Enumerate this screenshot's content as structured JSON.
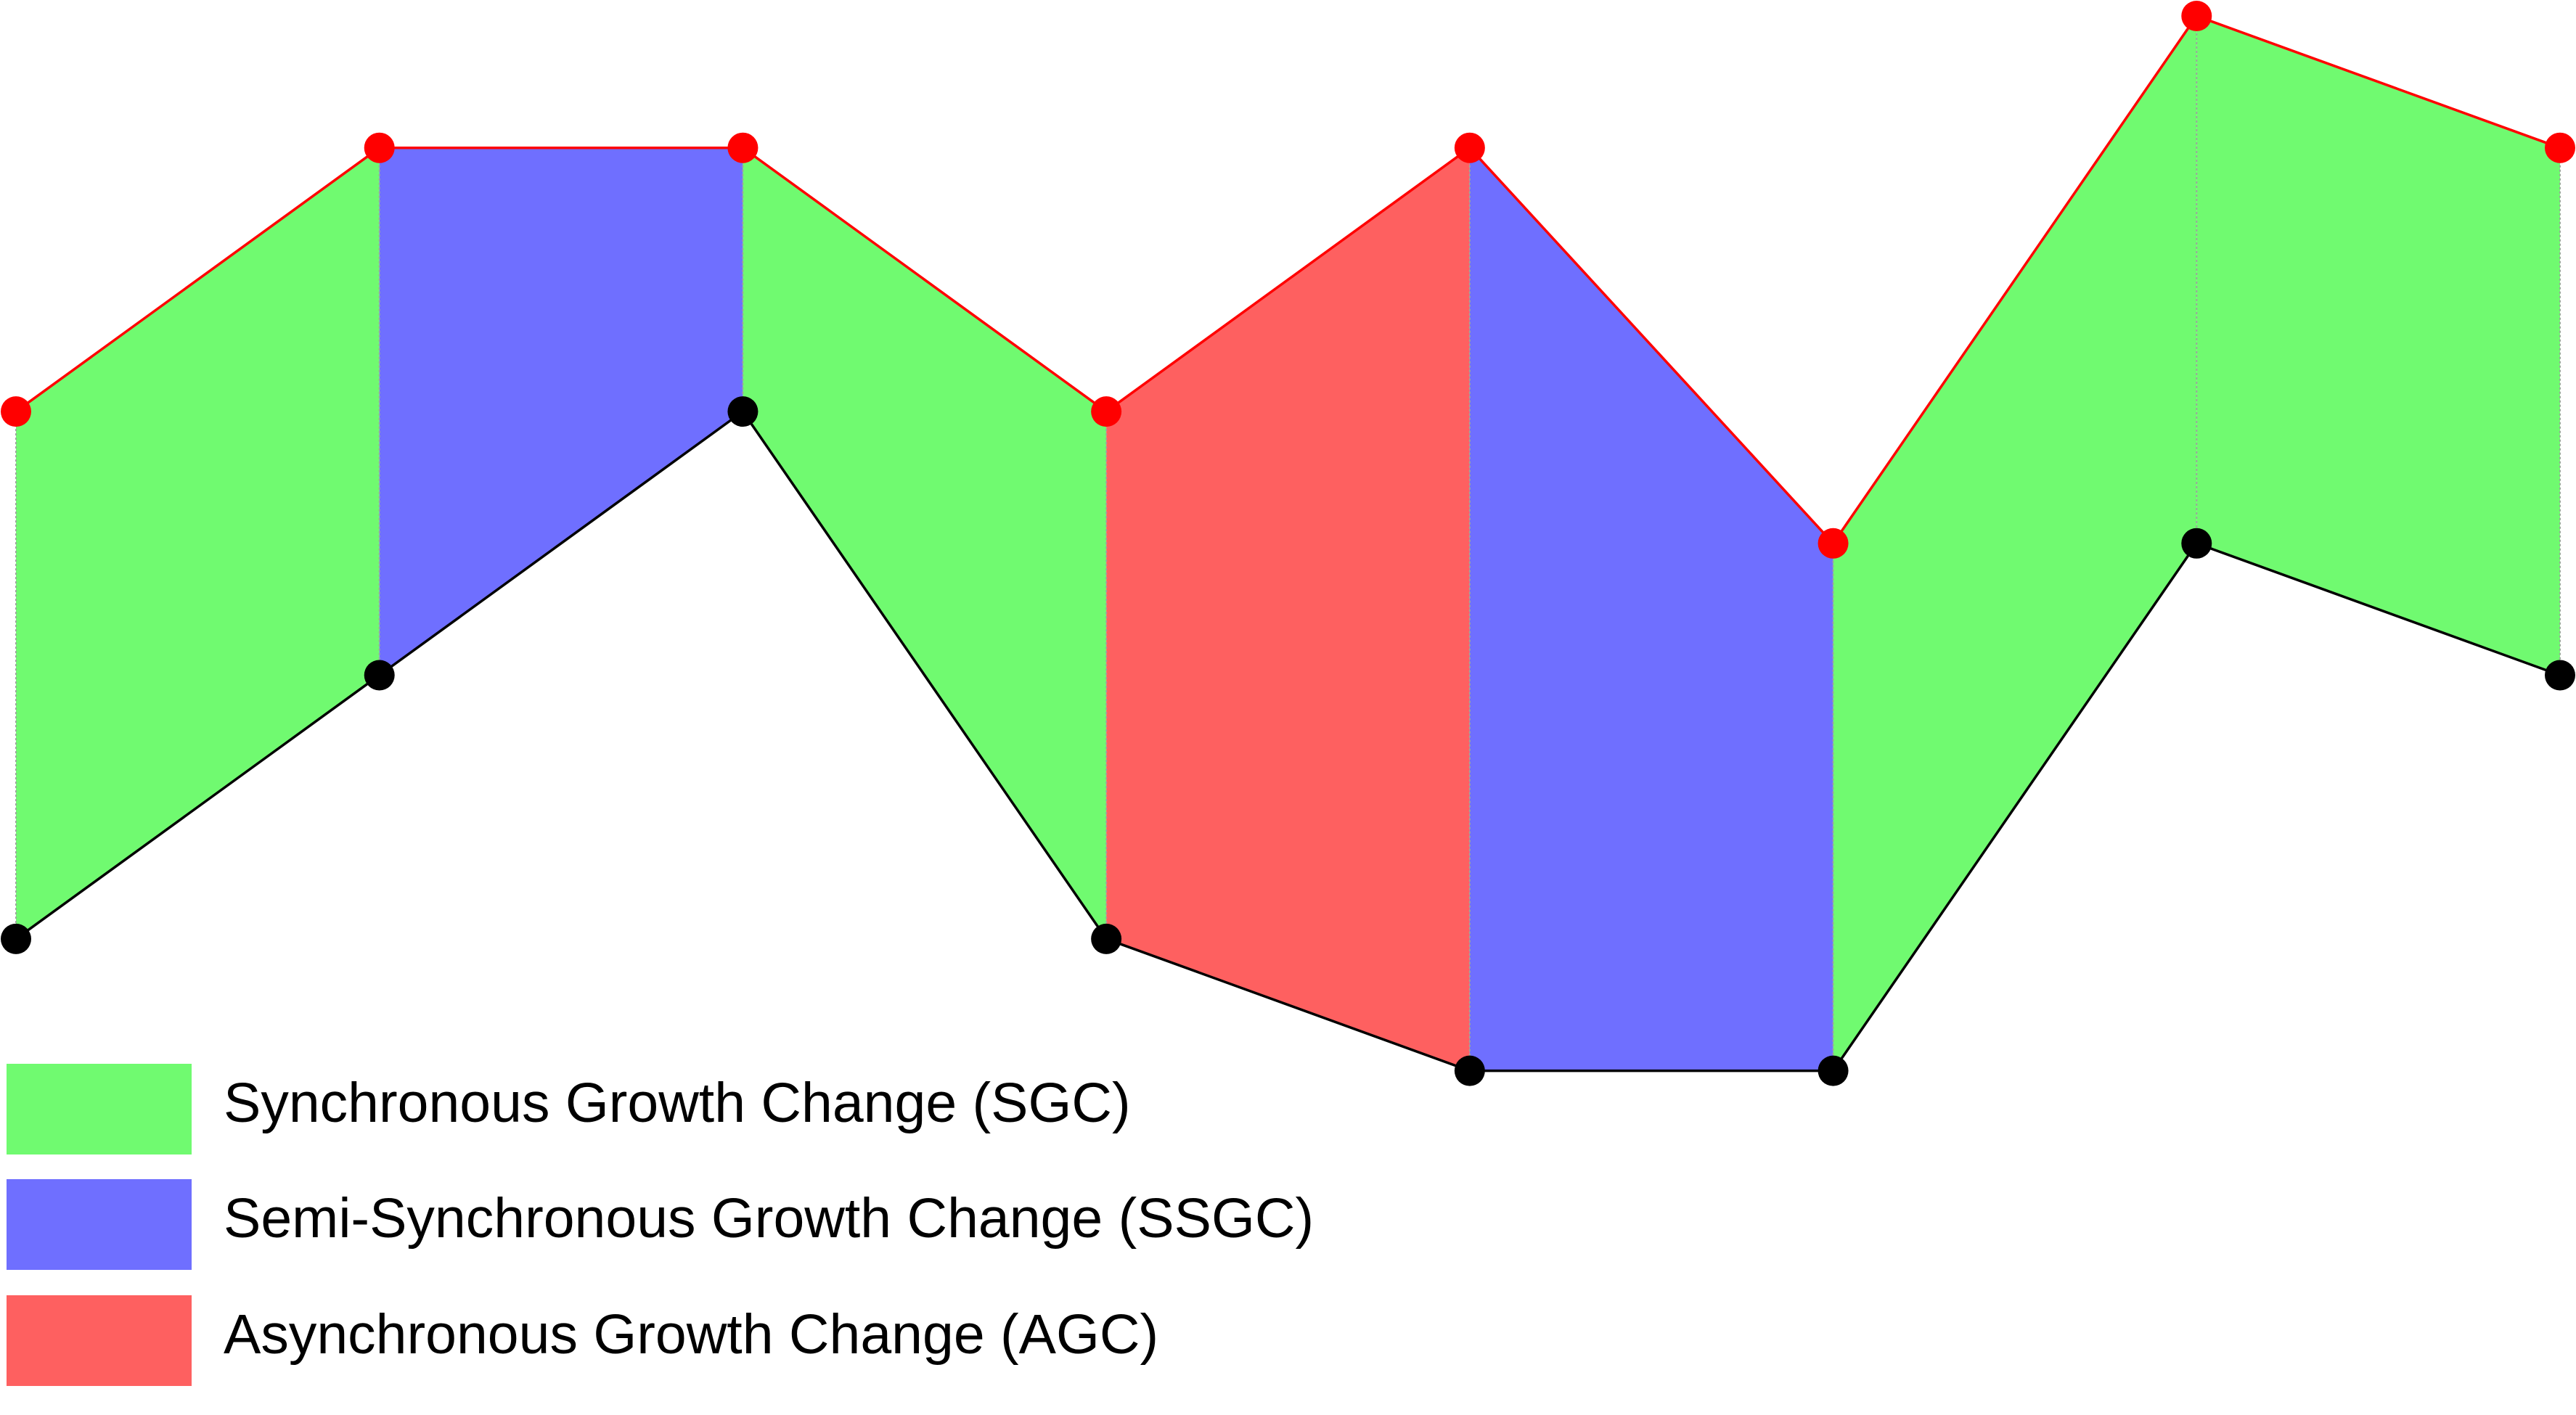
{
  "diagram": {
    "series": [
      {
        "name": "upper",
        "color": "#ff0000",
        "values": [
          3,
          5,
          5,
          3,
          5,
          2,
          6,
          5
        ]
      },
      {
        "name": "lower",
        "color": "#000000",
        "values": [
          -1,
          1,
          3,
          -1,
          -2,
          -2,
          2,
          1
        ]
      }
    ],
    "segments": [
      {
        "category": "SGC"
      },
      {
        "category": "SSGC"
      },
      {
        "category": "SGC"
      },
      {
        "category": "AGC"
      },
      {
        "category": "SSGC"
      },
      {
        "category": "SGC"
      },
      {
        "category": "SGC"
      }
    ]
  },
  "legend": {
    "items": [
      {
        "key": "SGC",
        "label": "Synchronous Growth Change (SGC)",
        "color": "#70fa70"
      },
      {
        "key": "SSGC",
        "label": "Semi-Synchronous Growth Change (SSGC)",
        "color": "#6f6fff"
      },
      {
        "key": "AGC",
        "label": "Asynchronous Growth Change (AGC)",
        "color": "#fe6060"
      }
    ]
  }
}
